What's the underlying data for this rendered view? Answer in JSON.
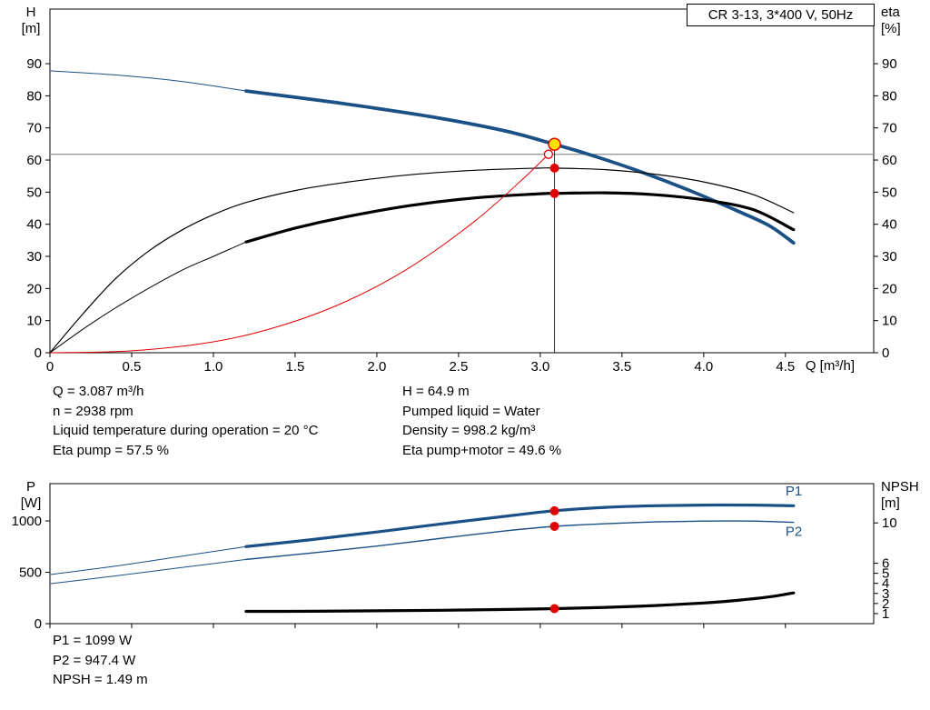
{
  "info_top_left": [
    "Q = 3.087 m³/h",
    "n = 2938 rpm",
    "Liquid temperature during operation = 20 °C",
    "Eta pump = 57.5 %"
  ],
  "info_top_right": [
    "H = 64.9 m",
    "Pumped liquid = Water",
    "Density = 998.2 kg/m³",
    "Eta pump+motor = 49.6 %"
  ],
  "info_bottom": [
    "P1 = 1099 W",
    "P2 = 947.4 W",
    "NPSH = 1.49 m"
  ],
  "duty_point": {
    "Q": 3.087,
    "H": 64.9,
    "eta_pump": 57.5,
    "eta_total": 49.6,
    "P1": 1099,
    "P2": 947.4,
    "NPSH": 1.49,
    "n_rpm": 2938
  },
  "colors": {
    "curve_blue": "#1b5087",
    "curve_black": "#000000",
    "curve_red": "#e00000",
    "duty_yellow": "#ffe200",
    "rule_gray": "#999999"
  },
  "chart_data": [
    {
      "type": "line",
      "name": "qh-eta-chart",
      "title": "CR 3-13, 3*400 V, 50Hz",
      "axes": {
        "x": {
          "range": [
            0,
            5.04
          ],
          "title": "Q [m³/h]",
          "ticks": [
            [
              0,
              "0"
            ],
            [
              0.5,
              "0.5"
            ],
            [
              1,
              "1.0"
            ],
            [
              1.5,
              "1.5"
            ],
            [
              2,
              "2.0"
            ],
            [
              2.5,
              "2.5"
            ],
            [
              3,
              "3.0"
            ],
            [
              3.5,
              "3.5"
            ],
            [
              4,
              "4.0"
            ],
            [
              4.5,
              "4.5"
            ]
          ]
        },
        "y": {
          "range": [
            0,
            107
          ],
          "title_lines": [
            "H",
            "[m]"
          ],
          "ticks": [
            [
              0,
              "0"
            ],
            [
              10,
              "10"
            ],
            [
              20,
              "20"
            ],
            [
              30,
              "30"
            ],
            [
              40,
              "40"
            ],
            [
              50,
              "50"
            ],
            [
              60,
              "60"
            ],
            [
              70,
              "70"
            ],
            [
              80,
              "80"
            ],
            [
              90,
              "90"
            ]
          ]
        },
        "y2": {
          "range": [
            0,
            107
          ],
          "title_lines": [
            "eta",
            "[%]"
          ],
          "ticks": [
            [
              0,
              "0"
            ],
            [
              10,
              "10"
            ],
            [
              20,
              "20"
            ],
            [
              30,
              "30"
            ],
            [
              40,
              "40"
            ],
            [
              50,
              "50"
            ],
            [
              60,
              "60"
            ],
            [
              70,
              "70"
            ],
            [
              80,
              "80"
            ],
            [
              90,
              "90"
            ]
          ]
        }
      },
      "rules": [
        {
          "name": "duty-head-rule",
          "type": "h",
          "axis": "y",
          "at": 61.8,
          "from": 0,
          "to": 5.04,
          "color": "#999999",
          "width": 1.4
        },
        {
          "name": "duty-flow-rule",
          "type": "v",
          "axis": "y",
          "at": 3.087,
          "from": 0,
          "to": 64.9,
          "color": "#333333",
          "width": 1
        }
      ],
      "series": [
        {
          "name": "qh-curve-lead",
          "axis": "y",
          "color": "#1b5087",
          "width": 1,
          "points": [
            [
              0,
              87.8
            ],
            [
              0.4,
              86.5
            ],
            [
              0.8,
              84.5
            ],
            [
              1.2,
              81.5
            ]
          ]
        },
        {
          "name": "qh-curve",
          "axis": "y",
          "color": "#1b5087",
          "width": 3.8,
          "points": [
            [
              1.2,
              81.5
            ],
            [
              1.6,
              78.9
            ],
            [
              2.0,
              76.1
            ],
            [
              2.4,
              72.9
            ],
            [
              2.8,
              68.9
            ],
            [
              3.087,
              64.9
            ],
            [
              3.3,
              61.7
            ],
            [
              3.6,
              56.6
            ],
            [
              3.9,
              50.8
            ],
            [
              4.2,
              44.3
            ],
            [
              4.4,
              39.6
            ],
            [
              4.55,
              34.2
            ]
          ]
        },
        {
          "name": "eta-pump-curve",
          "axis": "y2",
          "color": "#000000",
          "width": 1.2,
          "points": [
            [
              0,
              0
            ],
            [
              0.2,
              12
            ],
            [
              0.4,
              23
            ],
            [
              0.6,
              31.5
            ],
            [
              0.8,
              38
            ],
            [
              1.0,
              43
            ],
            [
              1.2,
              46.8
            ],
            [
              1.5,
              50.5
            ],
            [
              1.8,
              53
            ],
            [
              2.2,
              55.4
            ],
            [
              2.6,
              56.8
            ],
            [
              3.0,
              57.5
            ],
            [
              3.087,
              57.5
            ],
            [
              3.4,
              57
            ],
            [
              3.7,
              55.6
            ],
            [
              4.0,
              53.2
            ],
            [
              4.3,
              49.3
            ],
            [
              4.55,
              43.6
            ]
          ]
        },
        {
          "name": "eta-total-lead",
          "axis": "y2",
          "color": "#000000",
          "width": 1,
          "points": [
            [
              0,
              0
            ],
            [
              0.25,
              9
            ],
            [
              0.5,
              17
            ],
            [
              0.8,
              25.5
            ],
            [
              1.0,
              30
            ],
            [
              1.2,
              34.5
            ]
          ]
        },
        {
          "name": "eta-total-curve",
          "axis": "y2",
          "color": "#000000",
          "width": 3.2,
          "points": [
            [
              1.2,
              34.5
            ],
            [
              1.5,
              38.8
            ],
            [
              1.8,
              42.2
            ],
            [
              2.2,
              45.8
            ],
            [
              2.6,
              48.2
            ],
            [
              3.0,
              49.5
            ],
            [
              3.087,
              49.6
            ],
            [
              3.4,
              49.8
            ],
            [
              3.7,
              49.2
            ],
            [
              4.0,
              47.6
            ],
            [
              4.3,
              44.6
            ],
            [
              4.55,
              38.3
            ]
          ]
        },
        {
          "name": "system-curve",
          "axis": "y",
          "color": "#e00000",
          "width": 1,
          "points": [
            [
              0,
              0
            ],
            [
              0.5,
              0.6
            ],
            [
              1.0,
              3.4
            ],
            [
              1.4,
              8.2
            ],
            [
              1.8,
              15.7
            ],
            [
              2.2,
              26.5
            ],
            [
              2.6,
              41
            ],
            [
              2.9,
              54.4
            ],
            [
              3.05,
              61.8
            ]
          ]
        }
      ],
      "markers": [
        {
          "name": "system-intersection-marker",
          "x": 3.05,
          "y": 61.8,
          "axis": "y",
          "r": 4.5,
          "fill": "#ffffff",
          "stroke": "#e00000",
          "sw": 1.3,
          "interactable": false
        },
        {
          "name": "duty-point-qh-marker",
          "x": 3.087,
          "y": 64.9,
          "axis": "y",
          "r": 6.5,
          "fill": "#ffe200",
          "stroke": "#e00000",
          "sw": 1.5,
          "interactable": true
        },
        {
          "name": "duty-point-eta-pump-marker",
          "x": 3.087,
          "y": 57.5,
          "axis": "y2",
          "r": 5,
          "fill": "#e00000",
          "interactable": false
        },
        {
          "name": "duty-point-eta-total-marker",
          "x": 3.087,
          "y": 49.6,
          "axis": "y2",
          "r": 5,
          "fill": "#e00000",
          "interactable": false
        }
      ]
    },
    {
      "type": "line",
      "name": "power-npsh-chart",
      "axes": {
        "x": {
          "range": [
            0,
            5.04
          ],
          "title": "",
          "ticks": [
            [
              0,
              ""
            ],
            [
              0.5,
              ""
            ],
            [
              1,
              ""
            ],
            [
              1.5,
              ""
            ],
            [
              2,
              ""
            ],
            [
              2.5,
              ""
            ],
            [
              3,
              ""
            ],
            [
              3.5,
              ""
            ],
            [
              4,
              ""
            ],
            [
              4.5,
              ""
            ]
          ]
        },
        "y": {
          "range": [
            0,
            1363
          ],
          "title_lines": [
            "P",
            "[W]"
          ],
          "ticks": [
            [
              0,
              "0"
            ],
            [
              500,
              "500"
            ],
            [
              1000,
              "1000"
            ]
          ]
        },
        "y2": {
          "range": [
            0,
            13.9
          ],
          "title_lines": [
            "NPSH",
            "[m]"
          ],
          "ticks": [
            [
              1,
              "1"
            ],
            [
              2,
              "2"
            ],
            [
              3,
              "3"
            ],
            [
              4,
              "4"
            ],
            [
              5,
              "5"
            ],
            [
              6,
              "6"
            ],
            [
              10,
              "10"
            ]
          ]
        }
      },
      "rules": [],
      "series": [
        {
          "name": "p1-curve-lead",
          "axis": "y",
          "color": "#1b5087",
          "width": 1,
          "points": [
            [
              0,
              478
            ],
            [
              0.4,
              560
            ],
            [
              0.8,
              655
            ],
            [
              1.2,
              750
            ]
          ]
        },
        {
          "name": "p1-curve",
          "axis": "y",
          "color": "#1b5087",
          "width": 3.2,
          "points": [
            [
              1.2,
              750
            ],
            [
              1.6,
              818
            ],
            [
              2.0,
              892
            ],
            [
              2.4,
              972
            ],
            [
              2.8,
              1048
            ],
            [
              3.087,
              1099
            ],
            [
              3.4,
              1132
            ],
            [
              3.7,
              1148
            ],
            [
              4.0,
              1154
            ],
            [
              4.3,
              1154
            ],
            [
              4.55,
              1148
            ]
          ]
        },
        {
          "name": "p2-curve-lead",
          "axis": "y",
          "color": "#1b5087",
          "width": 1,
          "points": [
            [
              0,
              388
            ],
            [
              0.4,
              465
            ],
            [
              0.8,
              545
            ],
            [
              1.2,
              625
            ]
          ]
        },
        {
          "name": "p2-curve",
          "axis": "y",
          "color": "#1b5087",
          "width": 1.4,
          "points": [
            [
              1.2,
              625
            ],
            [
              1.6,
              688
            ],
            [
              2.0,
              755
            ],
            [
              2.4,
              832
            ],
            [
              2.8,
              905
            ],
            [
              3.087,
              947
            ],
            [
              3.4,
              973
            ],
            [
              3.7,
              990
            ],
            [
              4.0,
              998
            ],
            [
              4.3,
              998
            ],
            [
              4.55,
              986
            ]
          ]
        },
        {
          "name": "npsh-curve",
          "axis": "y2",
          "color": "#000000",
          "width": 3.2,
          "points": [
            [
              1.2,
              1.22
            ],
            [
              1.6,
              1.23
            ],
            [
              2.0,
              1.27
            ],
            [
              2.4,
              1.33
            ],
            [
              2.8,
              1.41
            ],
            [
              3.087,
              1.49
            ],
            [
              3.4,
              1.62
            ],
            [
              3.7,
              1.8
            ],
            [
              4.0,
              2.05
            ],
            [
              4.2,
              2.3
            ],
            [
              4.4,
              2.65
            ],
            [
              4.55,
              3.05
            ]
          ]
        }
      ],
      "annotations": [
        {
          "name": "p1-label",
          "text": "P1",
          "x": 4.5,
          "y": 1248,
          "axis": "y",
          "color": "#1b5087"
        },
        {
          "name": "p2-label",
          "text": "P2",
          "x": 4.5,
          "y": 855,
          "axis": "y",
          "color": "#1b5087"
        }
      ],
      "markers": [
        {
          "name": "duty-point-p1-marker",
          "x": 3.087,
          "y": 1099,
          "axis": "y",
          "r": 5,
          "fill": "#e00000",
          "interactable": false
        },
        {
          "name": "duty-point-p2-marker",
          "x": 3.087,
          "y": 947.4,
          "axis": "y",
          "r": 5,
          "fill": "#e00000",
          "interactable": false
        },
        {
          "name": "duty-point-npsh-marker",
          "x": 3.087,
          "y": 1.49,
          "axis": "y2",
          "r": 5,
          "fill": "#e00000",
          "interactable": false
        }
      ]
    }
  ]
}
